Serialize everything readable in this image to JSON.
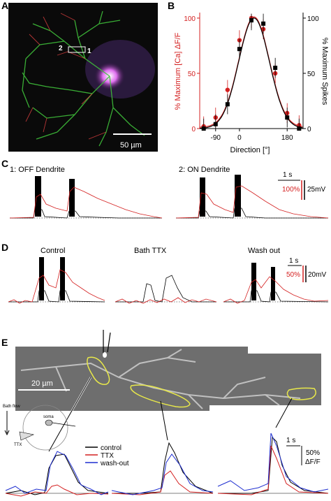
{
  "panels": {
    "A": {
      "letter": "A",
      "labels": [
        "2",
        "1"
      ],
      "scale_bar": "50 µm"
    },
    "B": {
      "letter": "B",
      "left_axis_label": "% Maximum [Ca] ΔF/F",
      "right_axis_label": "% Maximum Spikes",
      "x_axis_label": "Direction [°]",
      "x_ticks": [
        "-90",
        "0",
        "180"
      ],
      "left_ticks": [
        "0",
        "50",
        "100"
      ],
      "right_ticks": [
        "0",
        "50",
        "100"
      ],
      "colors": {
        "calcium": "#d42020",
        "spikes": "#000000"
      }
    },
    "C": {
      "letter": "C",
      "trace1_title": "1: OFF Dendrite",
      "trace2_title": "2: ON Dendrite",
      "time_scale": "1 s",
      "ca_scale": "100%",
      "v_scale": "25mV"
    },
    "D": {
      "letter": "D",
      "titles": [
        "Control",
        "Bath TTX",
        "Wash out"
      ],
      "time_scale": "1 s",
      "ca_scale": "50%",
      "v_scale": "20mV"
    },
    "E": {
      "letter": "E",
      "scale_bar": "20 µm",
      "inset": {
        "flow": "Bath flow",
        "soma": "soma",
        "ttx": "TTX"
      },
      "legend": [
        {
          "label": "control",
          "color": "#000000"
        },
        {
          "label": "TTX",
          "color": "#d42020"
        },
        {
          "label": "wash-out",
          "color": "#1f2fd0"
        }
      ],
      "time_scale": "1 s",
      "df_scale": "50%",
      "df_unit": "ΔF/F"
    }
  },
  "chart_data": [
    {
      "type": "line",
      "panel": "B",
      "xlabel": "Direction [°]",
      "ylabel": "% Maximum [Ca] ΔF/F",
      "y2label": "% Maximum Spikes",
      "xlim": [
        -150,
        240
      ],
      "ylim": [
        0,
        105
      ],
      "x_ticks": [
        -90,
        0,
        180
      ],
      "series": [
        {
          "color": "#d42020",
          "x": [
            -135,
            -90,
            -45,
            0,
            45,
            90,
            135,
            180,
            225
          ],
          "y": [
            2,
            10,
            35,
            80,
            100,
            90,
            50,
            14,
            3
          ]
        },
        {
          "color": "#000000",
          "x": [
            -135,
            -90,
            -45,
            0,
            45,
            90,
            135,
            180,
            225
          ],
          "y": [
            0,
            4,
            22,
            72,
            98,
            95,
            55,
            10,
            0
          ]
        }
      ]
    }
  ]
}
